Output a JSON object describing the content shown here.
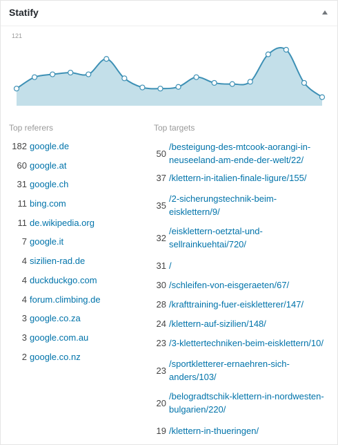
{
  "widget": {
    "title": "Statify",
    "toggle_icon": "caret-up-icon"
  },
  "chart_data": {
    "type": "area",
    "y_max_label": "121",
    "ylim": [
      0,
      121
    ],
    "values": [
      30,
      50,
      55,
      58,
      55,
      82,
      48,
      32,
      30,
      33,
      50,
      40,
      38,
      42,
      90,
      98,
      40,
      15
    ],
    "colors": {
      "fill": "#c3dfe9",
      "line": "#3d90b5",
      "point": "#ffffff"
    },
    "grid": false
  },
  "referers": {
    "title": "Top referers",
    "items": [
      {
        "count": "182",
        "label": "google.de"
      },
      {
        "count": "60",
        "label": "google.at"
      },
      {
        "count": "31",
        "label": "google.ch"
      },
      {
        "count": "11",
        "label": "bing.com"
      },
      {
        "count": "11",
        "label": "de.wikipedia.org"
      },
      {
        "count": "7",
        "label": "google.it"
      },
      {
        "count": "4",
        "label": "sizilien-rad.de"
      },
      {
        "count": "4",
        "label": "duckduckgo.com"
      },
      {
        "count": "4",
        "label": "forum.climbing.de"
      },
      {
        "count": "3",
        "label": "google.co.za"
      },
      {
        "count": "3",
        "label": "google.com.au"
      },
      {
        "count": "2",
        "label": "google.co.nz"
      }
    ]
  },
  "targets": {
    "title": "Top targets",
    "items": [
      {
        "count": "50",
        "label": "/besteigung-des-mtcook-aorangi-in-neuseeland-am-ende-der-welt/22/"
      },
      {
        "count": "37",
        "label": "/klettern-in-italien-finale-ligure/155/"
      },
      {
        "count": "35",
        "label": "/2-sicherungstechnik-beim-eisklettern/9/"
      },
      {
        "count": "32",
        "label": "/eisklettern-oetztal-und-sellrainkuehtai/720/"
      },
      {
        "count": "31",
        "label": "/"
      },
      {
        "count": "30",
        "label": "/schleifen-von-eisgeraeten/67/"
      },
      {
        "count": "28",
        "label": "/krafttraining-fuer-eiskletterer/147/"
      },
      {
        "count": "24",
        "label": "/klettern-auf-sizilien/148/"
      },
      {
        "count": "23",
        "label": "/3-klettertechniken-beim-eisklettern/10/"
      },
      {
        "count": "23",
        "label": "/sportkletterer-ernaehren-sich-anders/103/"
      },
      {
        "count": "20",
        "label": "/belogradtschik-klettern-in-nordwesten-bulgarien/220/"
      },
      {
        "count": "19",
        "label": "/klettern-in-thueringen/"
      }
    ]
  }
}
